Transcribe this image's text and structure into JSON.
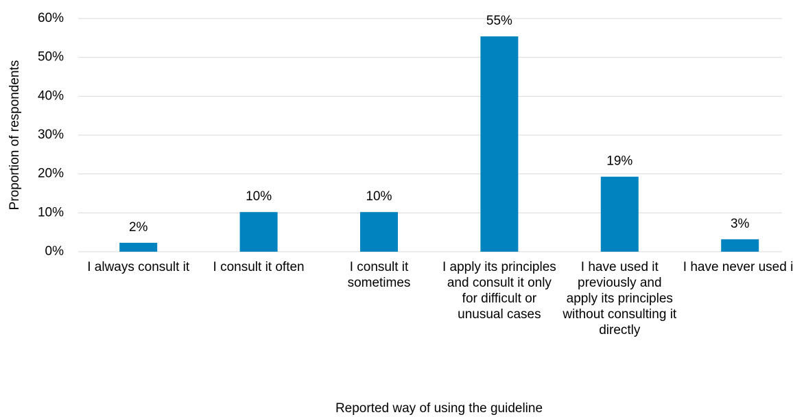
{
  "chart_data": {
    "type": "bar",
    "categories": [
      "I always consult it",
      "I consult it often",
      "I consult it sometimes",
      "I apply its principles and consult it only for difficult or unusual cases",
      "I have used it previously and apply its principles without consulting it directly",
      "I have never used it"
    ],
    "values": [
      2.3,
      10.2,
      10.2,
      55.4,
      19.3,
      3.2
    ],
    "value_labels": [
      "2%",
      "10%",
      "10%",
      "55%",
      "19%",
      "3%"
    ],
    "color": "#0083bf",
    "ylim": [
      0,
      60
    ],
    "yticks": [
      {
        "value": 0,
        "label": "0%"
      },
      {
        "value": 10,
        "label": "10%"
      },
      {
        "value": 20,
        "label": "20%"
      },
      {
        "value": 30,
        "label": "30%"
      },
      {
        "value": 40,
        "label": "40%"
      },
      {
        "value": 50,
        "label": "50%"
      },
      {
        "value": 60,
        "label": "60%"
      }
    ],
    "grid": true,
    "xlabel": "Reported way of using the guideline",
    "ylabel": "Proportion of respondents"
  }
}
